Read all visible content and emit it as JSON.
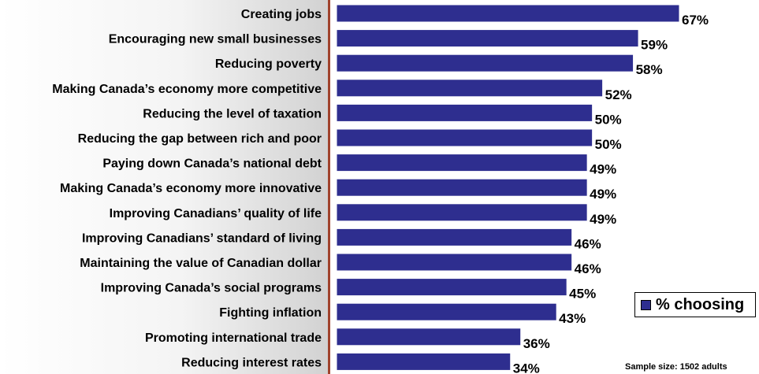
{
  "chart_data": {
    "type": "bar",
    "orientation": "horizontal",
    "categories": [
      "Creating jobs",
      "Encouraging new small businesses",
      "Reducing poverty",
      "Making Canada’s economy more competitive",
      "Reducing the level of taxation",
      "Reducing the gap between rich and poor",
      "Paying down Canada’s national debt",
      "Making Canada’s economy more innovative",
      "Improving Canadians’ quality of life",
      "Improving Canadians’ standard of living",
      "Maintaining the value of Canadian dollar",
      "Improving Canada’s social programs",
      "Fighting inflation",
      "Promoting international trade",
      "Reducing interest rates"
    ],
    "series": [
      {
        "name": "% choosing",
        "values": [
          67,
          59,
          58,
          52,
          50,
          50,
          49,
          49,
          49,
          46,
          46,
          45,
          43,
          36,
          34
        ],
        "labels": [
          "67%",
          "59%",
          "58%",
          "52%",
          "50%",
          "50%",
          "49%",
          "49%",
          "49%",
          "46%",
          "46%",
          "45%",
          "43%",
          "36%",
          "34%"
        ]
      }
    ],
    "xlim": [
      0,
      67
    ],
    "grid": false,
    "legend_position": "bottom-right",
    "bar_color": "#2e2e8f",
    "axis_color": "#a0432d"
  },
  "legend": {
    "label": "% choosing"
  },
  "footnote": "Sample size: 1502 adults"
}
